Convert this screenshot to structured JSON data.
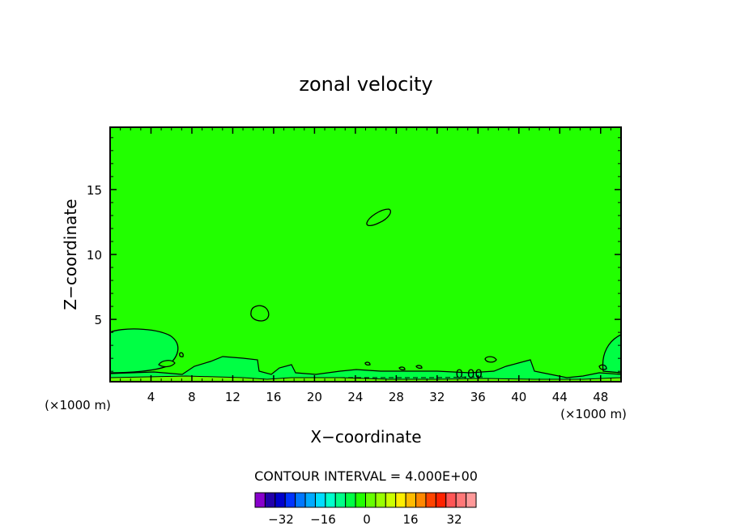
{
  "chart_data": {
    "type": "contour",
    "title": "zonal velocity",
    "xlabel": "X−coordinate",
    "ylabel": "Z−coordinate",
    "x_unit_left": "(×1000 m)",
    "x_unit_right": "(×1000 m)",
    "xlim": [
      0,
      50
    ],
    "ylim": [
      0.2,
      19.8
    ],
    "x_ticks": [
      4,
      8,
      12,
      16,
      20,
      24,
      28,
      32,
      36,
      40,
      44,
      48
    ],
    "x_tick_labels": [
      "4",
      "8",
      "12",
      "16",
      "20",
      "24",
      "28",
      "32",
      "36",
      "40",
      "44",
      "48"
    ],
    "y_ticks": [
      5,
      10,
      15
    ],
    "y_tick_labels": [
      "5",
      "10",
      "15"
    ],
    "background_color": "#22ff00",
    "contour_labels": [
      {
        "x": 33.8,
        "y": 0.6,
        "text": "0.00"
      }
    ],
    "contour_interval_text": "CONTOUR INTERVAL = 4.000E+00",
    "colorbar": {
      "colors": [
        "#8800cc",
        "#2200aa",
        "#0000cc",
        "#0033ff",
        "#0077ff",
        "#00aaff",
        "#00ddff",
        "#00ffcc",
        "#00ff88",
        "#00ff44",
        "#22ff00",
        "#66ff00",
        "#99ff00",
        "#ccff00",
        "#ffee00",
        "#ffbb00",
        "#ff8800",
        "#ff4400",
        "#ff2200",
        "#ff5555",
        "#ff7777",
        "#ff9999"
      ],
      "tick_labels": [
        "−32",
        "−16",
        "0",
        "16",
        "32"
      ]
    }
  }
}
